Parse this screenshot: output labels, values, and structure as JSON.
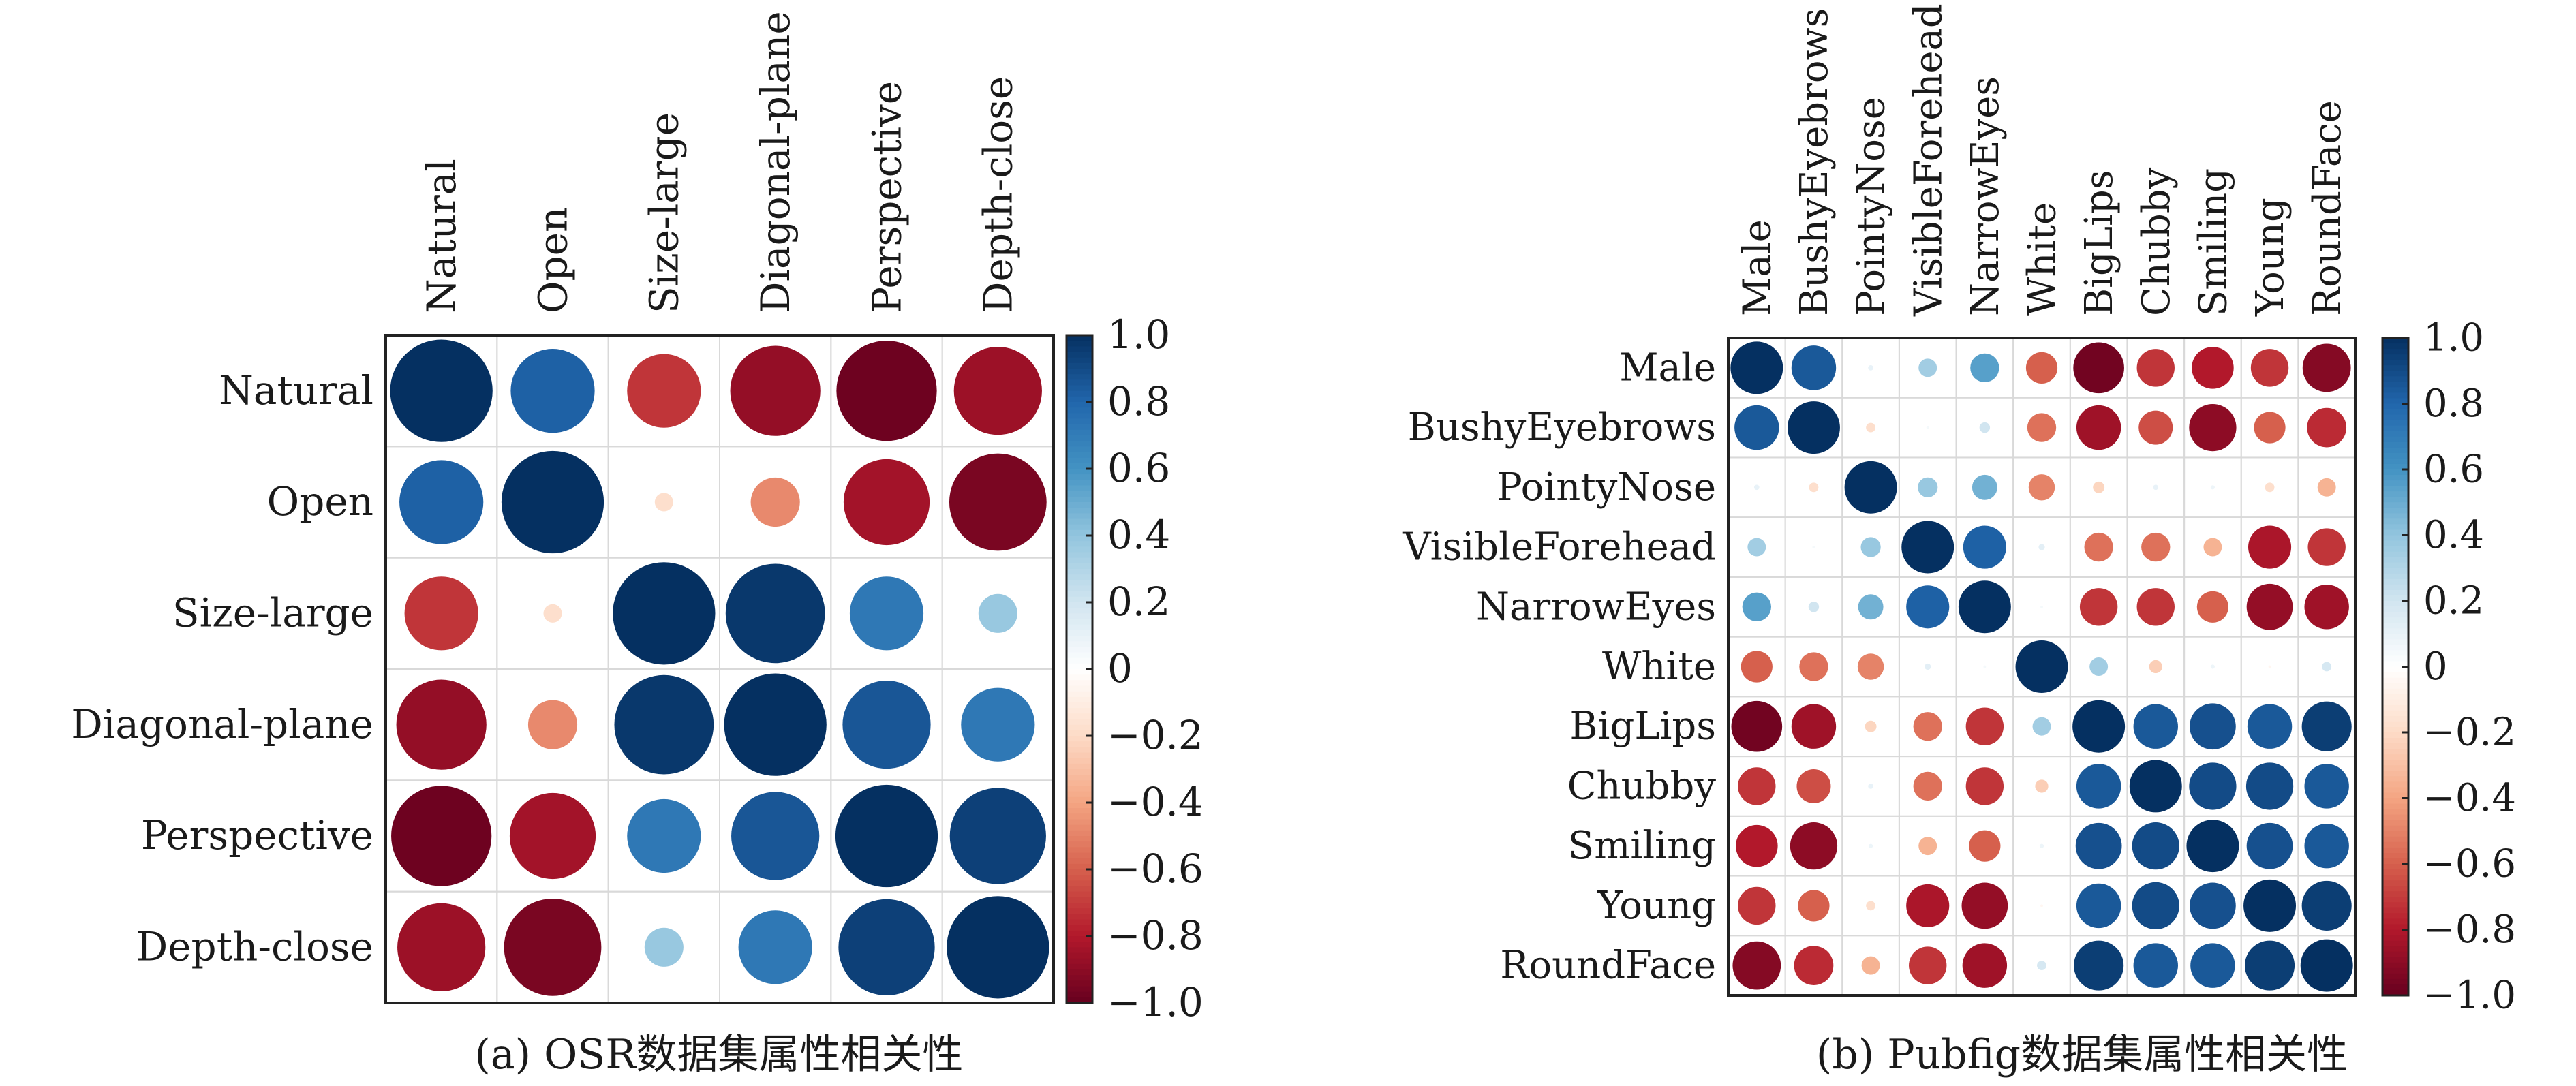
{
  "chart_data": [
    {
      "type": "heatmap",
      "subtype": "correlation-circles",
      "title": "",
      "caption": "(a) OSR数据集属性相关性",
      "labels": [
        "Natural",
        "Open",
        "Size-large",
        "Diagonal-plane",
        "Perspective",
        "Depth-close"
      ],
      "matrix": [
        [
          1.0,
          0.82,
          -0.72,
          -0.88,
          -0.98,
          -0.86
        ],
        [
          0.82,
          1.0,
          -0.18,
          -0.48,
          -0.84,
          -0.95
        ],
        [
          -0.72,
          -0.18,
          1.0,
          0.97,
          0.72,
          0.38
        ],
        [
          -0.88,
          -0.48,
          0.97,
          1.0,
          0.86,
          0.72
        ],
        [
          -0.98,
          -0.84,
          0.72,
          0.86,
          1.0,
          0.94
        ],
        [
          -0.86,
          -0.95,
          0.38,
          0.72,
          0.94,
          1.0
        ]
      ],
      "colorbar_ticks": [
        "1.0",
        "0.8",
        "0.6",
        "0.4",
        "0.2",
        "0",
        "−0.2",
        "−0.4",
        "−0.6",
        "−0.8",
        "−1.0"
      ],
      "colorbar_range": [
        -1,
        1
      ],
      "grid": true
    },
    {
      "type": "heatmap",
      "subtype": "correlation-circles",
      "title": "",
      "caption": "(b) Pubfig数据集属性相关性",
      "labels": [
        "Male",
        "BushyEyebrows",
        "PointyNose",
        "VisibleForehead",
        "NarrowEyes",
        "White",
        "BigLips",
        "Chubby",
        "Smiling",
        "Young",
        "RoundFace"
      ],
      "matrix": [
        [
          1.0,
          0.85,
          0.1,
          0.35,
          0.55,
          -0.6,
          -0.97,
          -0.72,
          -0.8,
          -0.72,
          -0.92
        ],
        [
          0.85,
          1.0,
          -0.18,
          0.05,
          0.2,
          -0.55,
          -0.85,
          -0.65,
          -0.9,
          -0.6,
          -0.75
        ],
        [
          0.1,
          -0.18,
          1.0,
          0.38,
          0.48,
          -0.5,
          -0.22,
          0.1,
          0.08,
          -0.18,
          -0.35
        ],
        [
          0.35,
          0.05,
          0.38,
          1.0,
          0.82,
          0.12,
          -0.55,
          -0.55,
          -0.35,
          -0.82,
          -0.72
        ],
        [
          0.55,
          0.2,
          0.48,
          0.82,
          1.0,
          0.05,
          -0.72,
          -0.72,
          -0.6,
          -0.88,
          -0.85
        ],
        [
          -0.6,
          -0.55,
          -0.5,
          0.12,
          0.05,
          1.0,
          0.35,
          -0.25,
          0.08,
          -0.05,
          0.18
        ],
        [
          -0.97,
          -0.85,
          -0.22,
          -0.55,
          -0.72,
          0.35,
          1.0,
          0.85,
          0.88,
          0.85,
          0.95
        ],
        [
          -0.72,
          -0.65,
          0.1,
          -0.55,
          -0.72,
          -0.25,
          0.85,
          1.0,
          0.9,
          0.9,
          0.85
        ],
        [
          -0.8,
          -0.9,
          0.08,
          -0.35,
          -0.6,
          0.08,
          0.88,
          0.9,
          1.0,
          0.88,
          0.85
        ],
        [
          -0.72,
          -0.6,
          -0.18,
          -0.82,
          -0.88,
          -0.05,
          0.85,
          0.9,
          0.88,
          1.0,
          0.95
        ],
        [
          -0.92,
          -0.75,
          -0.35,
          -0.72,
          -0.85,
          0.18,
          0.95,
          0.85,
          0.85,
          0.95,
          1.0
        ]
      ],
      "colorbar_ticks": [
        "1.0",
        "0.8",
        "0.6",
        "0.4",
        "0.2",
        "0",
        "−0.2",
        "−0.4",
        "−0.6",
        "−0.8",
        "−1.0"
      ],
      "colorbar_range": [
        -1,
        1
      ],
      "grid": true
    }
  ],
  "colors": {
    "palette": [
      "#67001F",
      "#B2182B",
      "#D6604D",
      "#F4A582",
      "#FDDBC7",
      "#FFFFFF",
      "#D1E5F0",
      "#92C5DE",
      "#4393C3",
      "#2166AC",
      "#053061"
    ],
    "grid": "#d9d9d9",
    "border": "#222222"
  }
}
